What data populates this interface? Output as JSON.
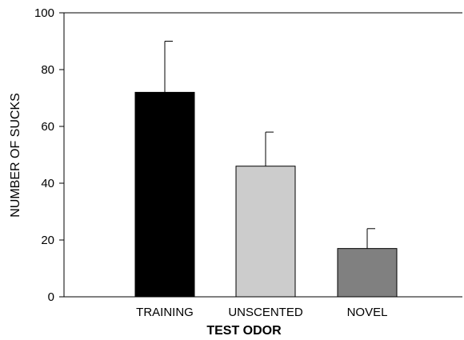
{
  "chart_data": {
    "type": "bar",
    "categories": [
      "TRAINING",
      "UNSCENTED",
      "NOVEL"
    ],
    "values": [
      72,
      46,
      17
    ],
    "error_upper": [
      90,
      58,
      24
    ],
    "bar_colors": [
      "#000000",
      "#cccccc",
      "#808080"
    ],
    "xlabel": "TEST ODOR",
    "ylabel": "NUMBER OF SUCKS",
    "ylim": [
      0,
      100
    ],
    "yticks": [
      0,
      20,
      40,
      60,
      80,
      100
    ],
    "grid": false,
    "legend": "none"
  }
}
